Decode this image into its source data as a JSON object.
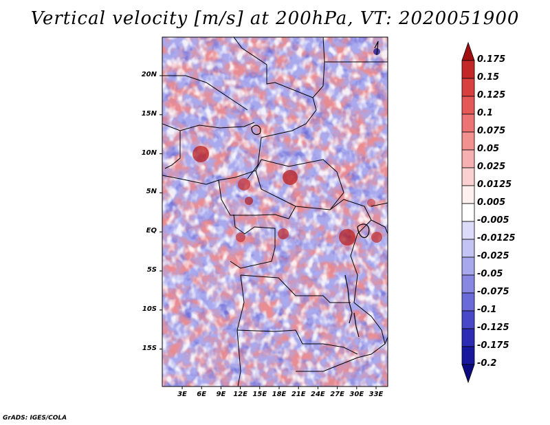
{
  "title": "Vertical velocity [m/s] at 200hPa, VT: 2020051900",
  "credit": "GrADS: IGES/COLA",
  "map": {
    "y_labels": [
      "20N",
      "15N",
      "10N",
      "5N",
      "EQ",
      "5S",
      "10S",
      "15S"
    ],
    "x_labels": [
      "3E",
      "6E",
      "9E",
      "12E",
      "15E",
      "18E",
      "21E",
      "24E",
      "27E",
      "30E",
      "33E"
    ],
    "variable": "vertical velocity",
    "units": "m/s",
    "level": "200hPa"
  },
  "colorbar": {
    "levels": [
      "0.175",
      "0.15",
      "0.125",
      "0.1",
      "0.075",
      "0.05",
      "0.025",
      "0.0125",
      "0.005",
      "-0.005",
      "-0.0125",
      "-0.025",
      "-0.05",
      "-0.075",
      "-0.1",
      "-0.125",
      "-0.175",
      "-0.2"
    ],
    "colors": [
      "#a01010",
      "#c22828",
      "#d84040",
      "#e45858",
      "#ec7474",
      "#f39090",
      "#f7b0b0",
      "#fbd0d0",
      "#fff0f0",
      "#ffffff",
      "#dcdcfa",
      "#c4c4f4",
      "#a8a8ec",
      "#8888e2",
      "#6a6ad8",
      "#4848c8",
      "#2c2cb4",
      "#18189c",
      "#0c0c80"
    ]
  }
}
